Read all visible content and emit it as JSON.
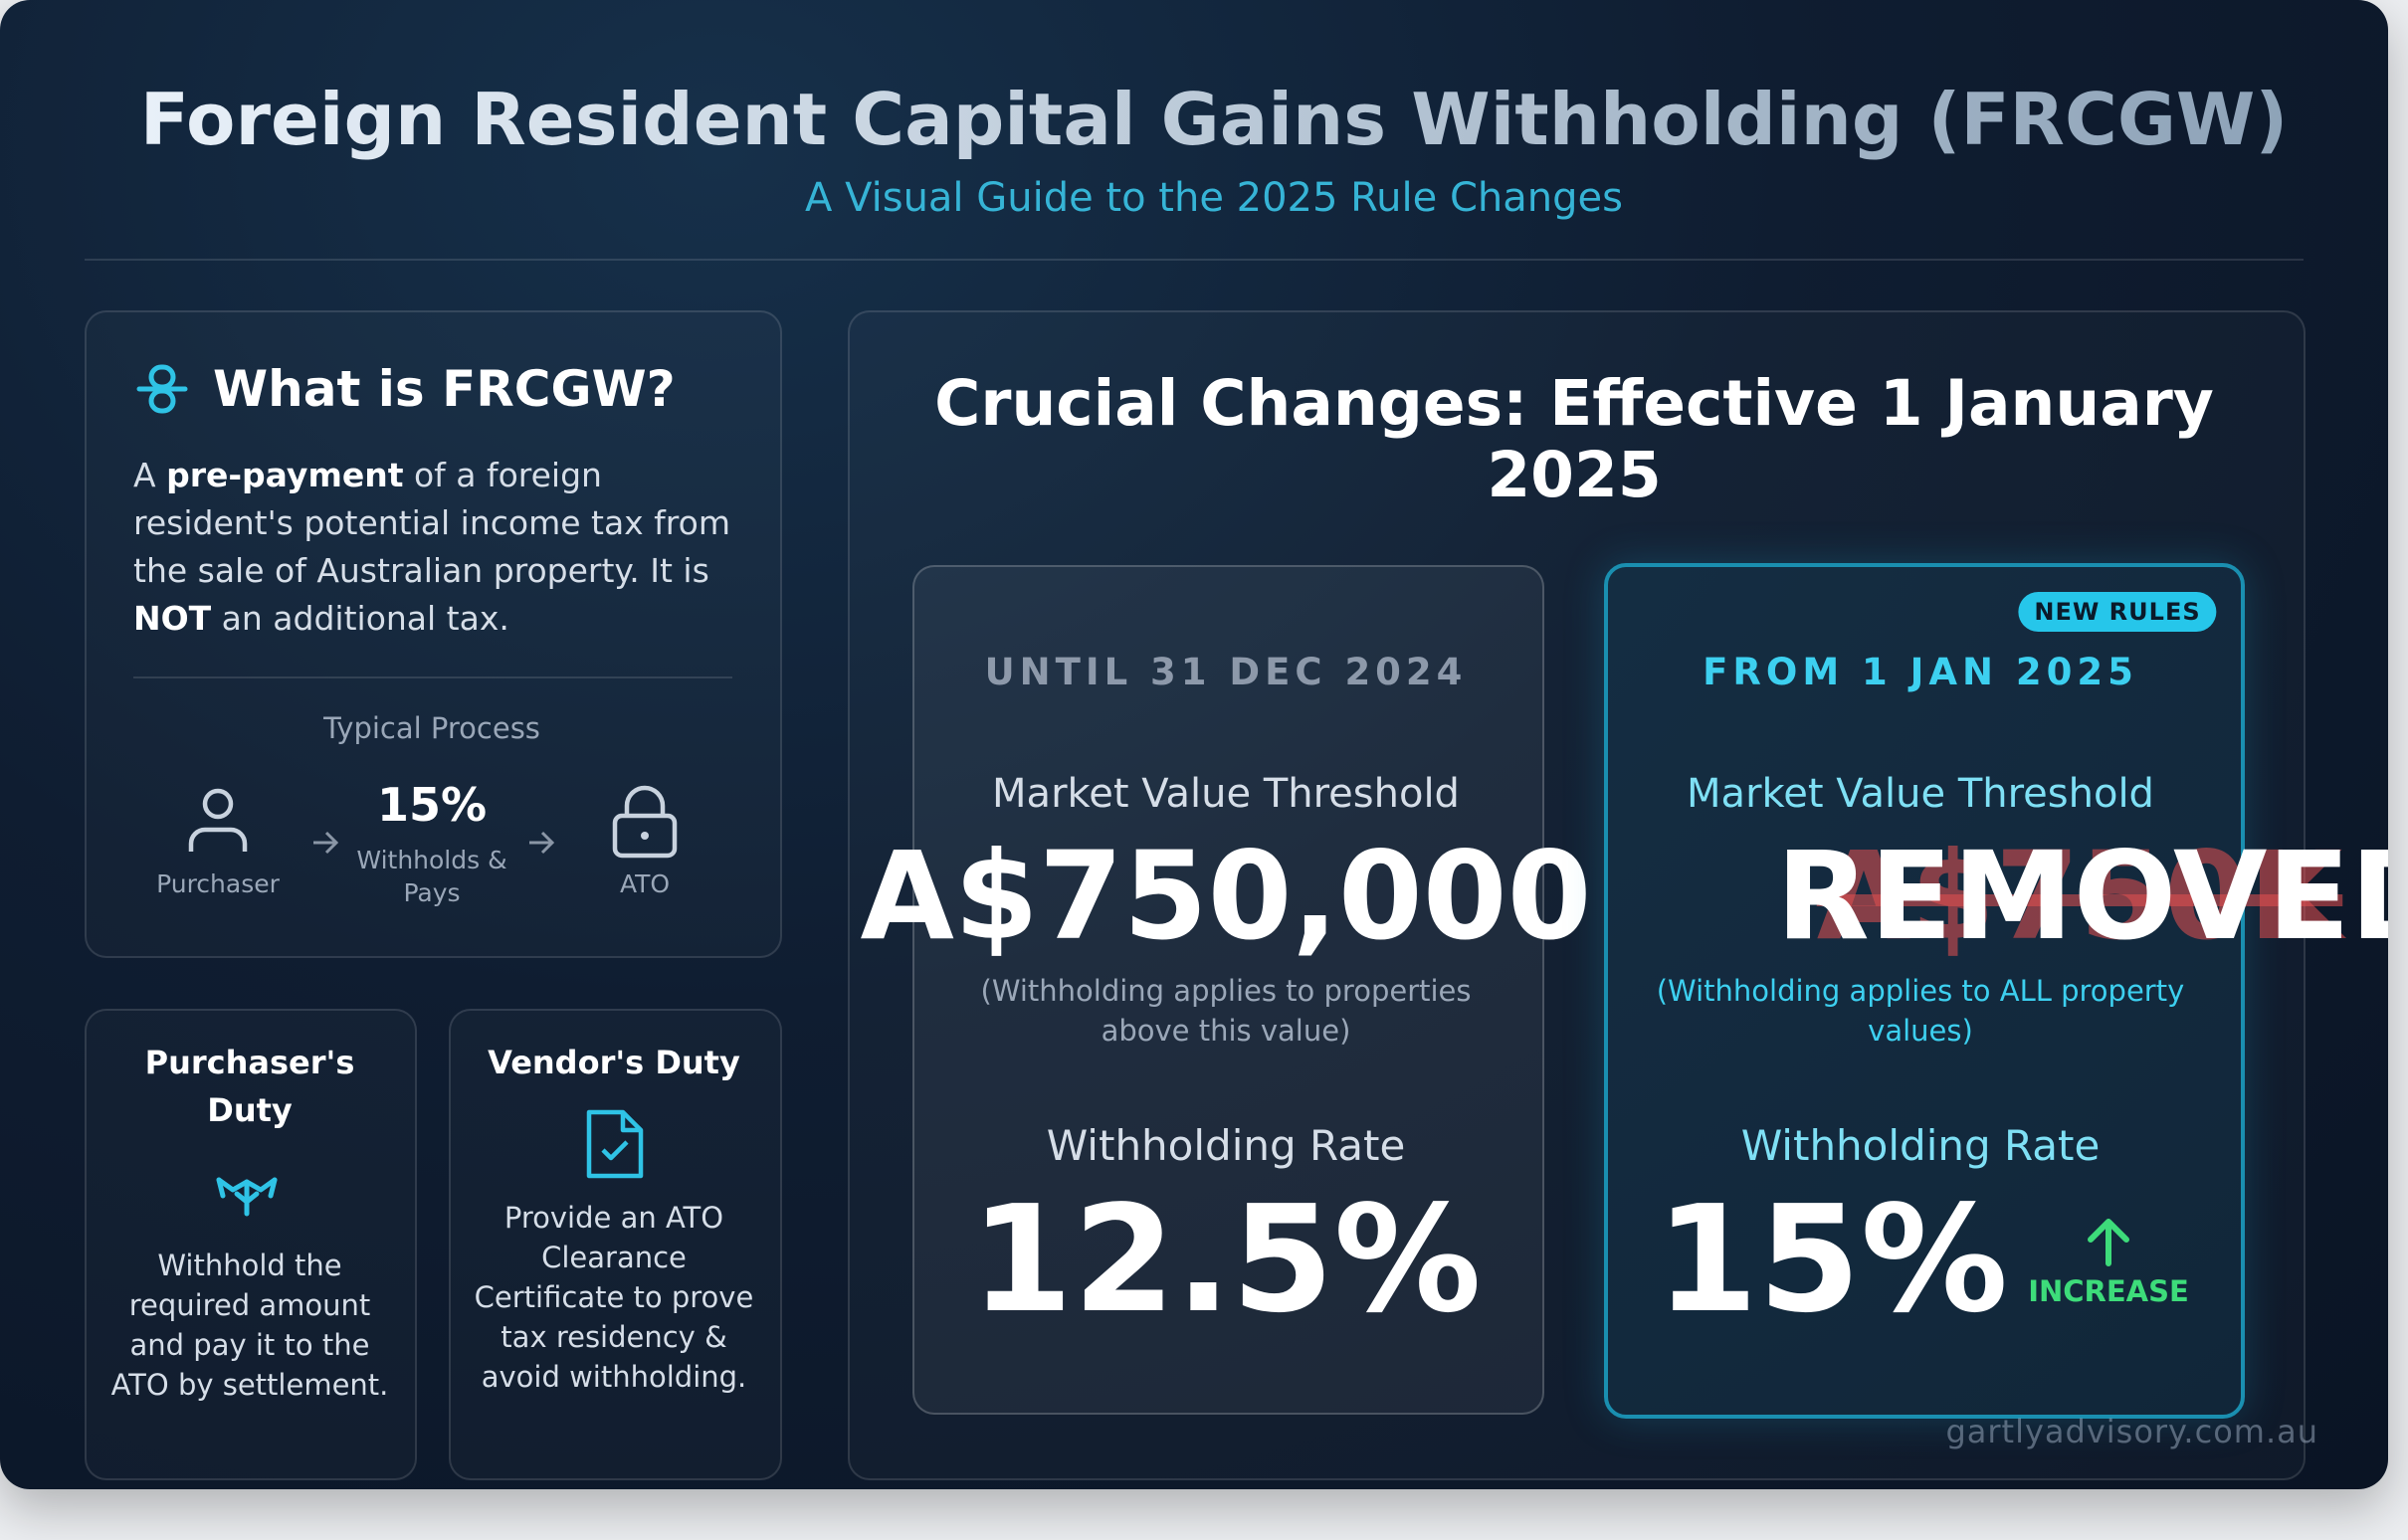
{
  "header": {
    "title": "Foreign Resident Capital Gains Withholding (FRCGW)",
    "subtitle": "A Visual Guide to the 2025 Rule Changes"
  },
  "what_is": {
    "title": "What is FRCGW?",
    "description": [
      "A ",
      "pre-payment",
      " of a foreign resident's potential income tax from the sale of Australian property. It is ",
      "NOT",
      " an additional tax."
    ],
    "process_label": "Typical Process",
    "steps": [
      {
        "label": "Purchaser"
      },
      {
        "value": "15%",
        "label": "Withholds & Pays"
      },
      {
        "label": "ATO"
      }
    ]
  },
  "duties": [
    {
      "title": "Purchaser's Duty",
      "text": "Withhold the required amount and pay it to the ATO by settlement."
    },
    {
      "title": "Vendor's Duty",
      "text": "Provide an ATO Clearance Certificate to prove tax residency & avoid withholding."
    }
  ],
  "changes": {
    "title": "Crucial Changes: Effective 1 January 2025",
    "before": {
      "period": "UNTIL 31 DEC 2024",
      "threshold_label": "Market Value Threshold",
      "threshold_value": "A$750,000",
      "threshold_note": "(Withholding applies to properties above this value)",
      "rate_label": "Withholding Rate",
      "rate": "12.5%"
    },
    "after": {
      "badge": "NEW RULES",
      "period": "FROM 1 JAN 2025",
      "threshold_label": "Market Value Threshold",
      "old_threshold": "A$750K",
      "threshold_value": "REMOVED",
      "threshold_note": "(Withholding applies to ALL property values)",
      "rate_label": "Withholding Rate",
      "rate": "15%",
      "rate_change": "INCREASE"
    }
  },
  "watermark": "gartlyadvisory.com.au"
}
